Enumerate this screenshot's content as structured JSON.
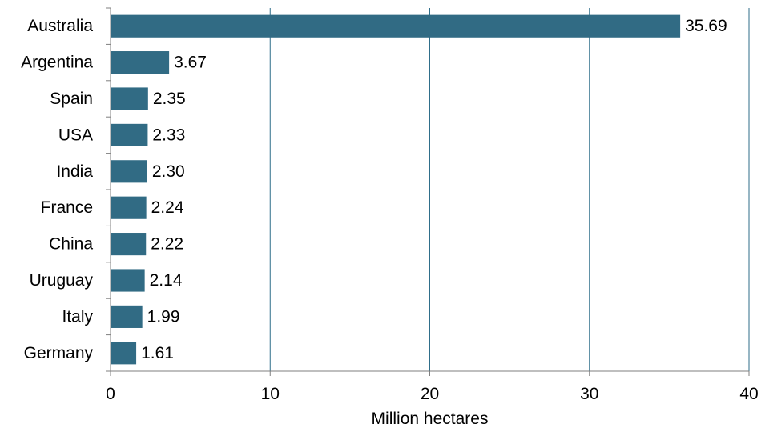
{
  "chart_data": {
    "type": "bar",
    "orientation": "horizontal",
    "title": "",
    "xlabel": "Million hectares",
    "ylabel": "",
    "categories": [
      "Australia",
      "Argentina",
      "Spain",
      "USA",
      "India",
      "France",
      "China",
      "Uruguay",
      "Italy",
      "Germany"
    ],
    "values": [
      35.69,
      3.67,
      2.35,
      2.33,
      2.3,
      2.24,
      2.22,
      2.14,
      1.99,
      1.61
    ],
    "value_labels": [
      "35.69",
      "3.67",
      "2.35",
      "2.33",
      "2.30",
      "2.24",
      "2.22",
      "2.14",
      "1.99",
      "1.61"
    ],
    "xlim": [
      0,
      40
    ],
    "xticks": [
      0,
      10,
      20,
      30,
      40
    ],
    "xtick_labels": [
      "0",
      "10",
      "20",
      "30",
      "40"
    ],
    "grid": "vertical",
    "legend": "none",
    "bar_color": "#316b84",
    "grid_color": "#2f6e8a",
    "axis_color": "#7f7f7f"
  }
}
